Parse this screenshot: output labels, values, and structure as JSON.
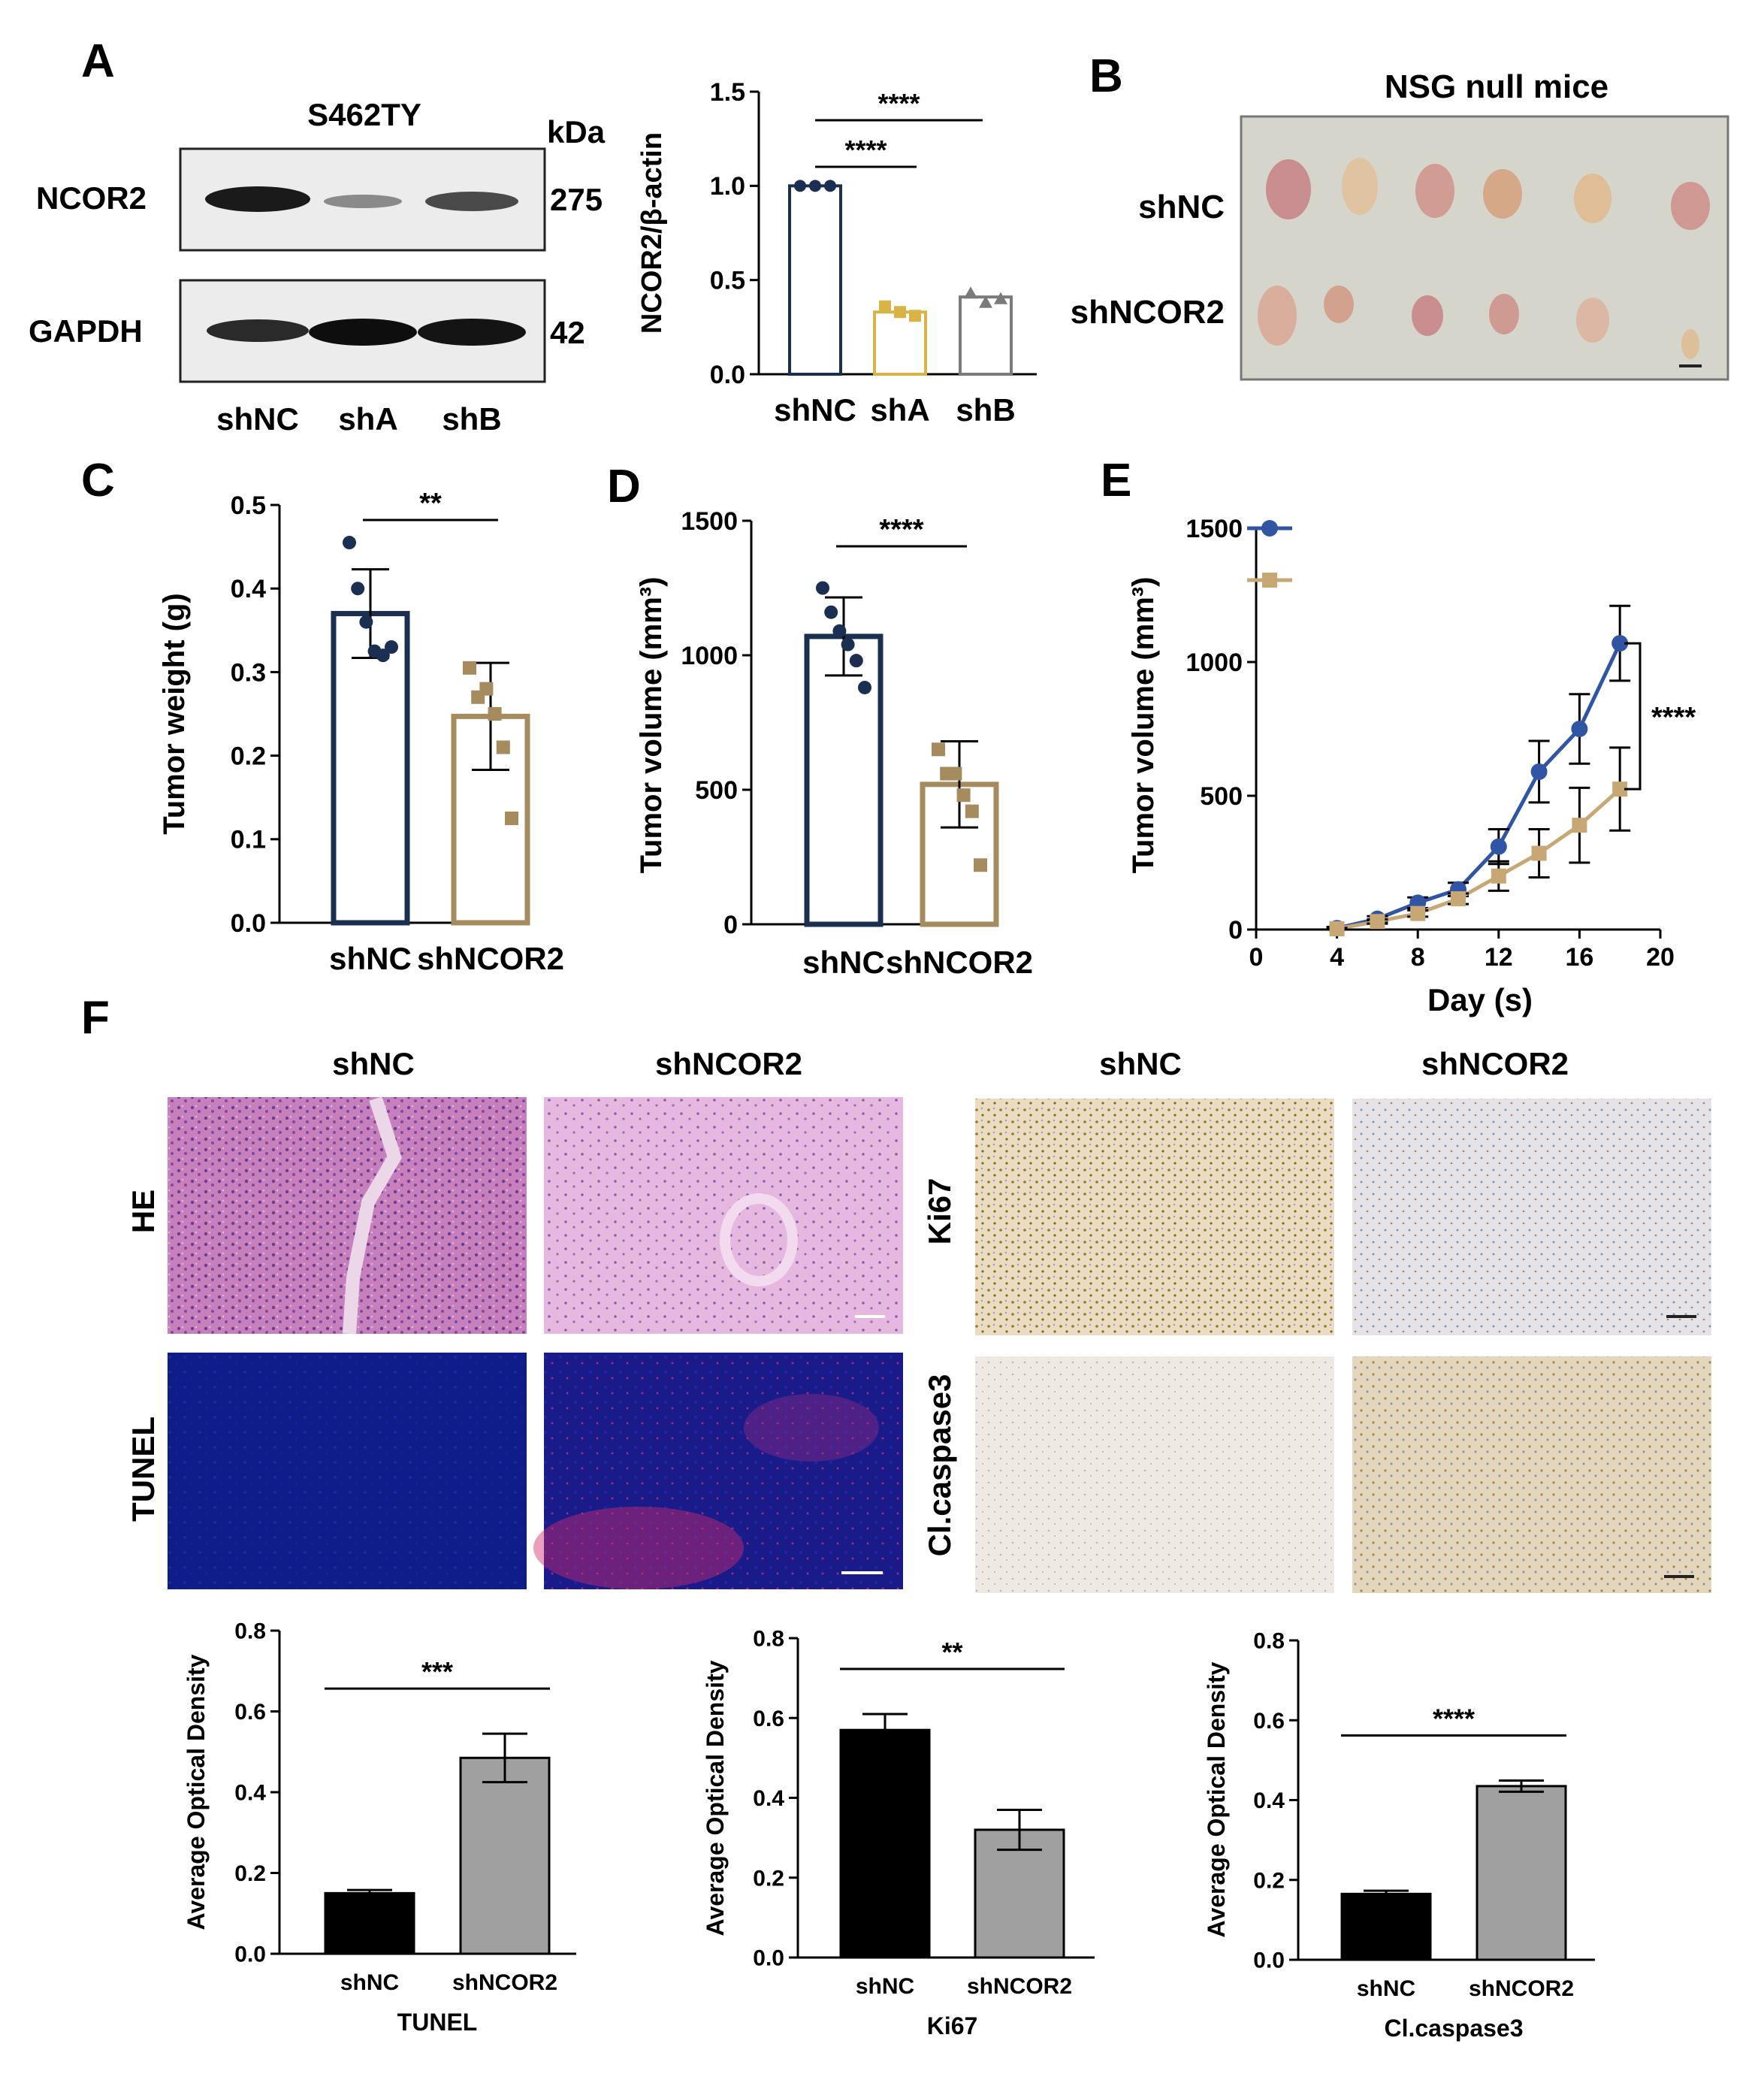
{
  "panels": {
    "a": "A",
    "b": "B",
    "c": "C",
    "d": "D",
    "e": "E",
    "f": "F"
  },
  "colors": {
    "navy": "#1b2f52",
    "tan": "#a58b5d",
    "gold": "#d8b447",
    "grey": "#7a7a7a",
    "blue_line": "#2f55a4",
    "tan_line": "#c7a874",
    "black_bar": "#000000",
    "grey_bar": "#a0a0a0"
  },
  "blot": {
    "cell_line": "S462TY",
    "kda": "kDa",
    "rows": [
      {
        "name": "NCOR2",
        "kda": "275"
      },
      {
        "name": "GAPDH",
        "kda": "42"
      }
    ],
    "lanes": [
      "shNC",
      "shA",
      "shB"
    ]
  },
  "mice": {
    "title": "NSG null mice",
    "rows": [
      "shNC",
      "shNCOR2"
    ]
  },
  "histology": {
    "left_cols": [
      "shNC",
      "shNCOR2"
    ],
    "right_cols": [
      "shNC",
      "shNCOR2"
    ],
    "left_rows": [
      "HE",
      "TUNEL"
    ],
    "right_rows": [
      "Ki67",
      "Cl.caspase3"
    ]
  },
  "chart_data": [
    {
      "id": "a2",
      "type": "bar",
      "categories": [
        "shNC",
        "shA",
        "shB"
      ],
      "values": [
        1.0,
        0.33,
        0.41
      ],
      "points": [
        [
          1.0,
          1.0,
          1.0
        ],
        [
          0.36,
          0.33,
          0.31
        ],
        [
          0.43,
          0.38,
          0.4
        ]
      ],
      "ylabel": "NCOR2/β-actin",
      "ylim": [
        0,
        1.5
      ],
      "yticks": [
        "0.0",
        "0.5",
        "1.0",
        "1.5"
      ],
      "sig": [
        {
          "from": 0,
          "to": 1,
          "label": "****"
        },
        {
          "from": 0,
          "to": 2,
          "label": "****"
        }
      ]
    },
    {
      "id": "c",
      "type": "bar",
      "categories": [
        "shNC",
        "shNCOR2"
      ],
      "values": [
        0.37,
        0.247
      ],
      "errors": [
        0.053,
        0.064
      ],
      "points": [
        [
          0.455,
          0.4,
          0.36,
          0.325,
          0.32,
          0.33
        ],
        [
          0.305,
          0.27,
          0.28,
          0.25,
          0.21,
          0.125
        ]
      ],
      "ylabel": "Tumor weight (g)",
      "ylim": [
        0,
        0.5
      ],
      "yticks": [
        "0.0",
        "0.1",
        "0.2",
        "0.3",
        "0.4",
        "0.5"
      ],
      "sig": [
        {
          "from": 0,
          "to": 1,
          "label": "**"
        }
      ]
    },
    {
      "id": "d",
      "type": "bar",
      "categories": [
        "shNC",
        "shNCOR2"
      ],
      "values": [
        1070,
        520
      ],
      "errors": [
        145,
        160
      ],
      "points": [
        [
          1250,
          1160,
          1090,
          1040,
          980,
          880
        ],
        [
          650,
          560,
          560,
          480,
          420,
          220
        ]
      ],
      "ylabel": "Tumor volume (mm³)",
      "ylim": [
        0,
        1500
      ],
      "yticks": [
        "0",
        "500",
        "1000",
        "1500"
      ],
      "sig": [
        {
          "from": 0,
          "to": 1,
          "label": "****"
        }
      ]
    },
    {
      "id": "e",
      "type": "line",
      "x": [
        4,
        6,
        8,
        10,
        12,
        14,
        16,
        18
      ],
      "series": [
        {
          "marker": "circle",
          "values": [
            5,
            40,
            100,
            150,
            310,
            590,
            750,
            1070
          ],
          "errors": [
            5,
            10,
            20,
            25,
            65,
            115,
            130,
            140
          ]
        },
        {
          "marker": "square",
          "values": [
            3,
            30,
            60,
            115,
            200,
            285,
            390,
            525
          ],
          "errors": [
            3,
            8,
            12,
            20,
            55,
            90,
            140,
            155
          ]
        }
      ],
      "xlabel": "Day (s)",
      "ylabel": "Tumor volume (mm³)",
      "xlim": [
        0,
        20
      ],
      "ylim": [
        0,
        1500
      ],
      "xticks": [
        "0",
        "4",
        "8",
        "12",
        "16",
        "20"
      ],
      "yticks": [
        "0",
        "500",
        "1000",
        "1500"
      ],
      "sig": "****"
    },
    {
      "id": "f1",
      "type": "bar",
      "categories": [
        "shNC",
        "shNCOR2"
      ],
      "values": [
        0.15,
        0.485
      ],
      "errors": [
        0.008,
        0.06
      ],
      "ylabel": "Average Optical Density",
      "xlabel": "TUNEL",
      "ylim": [
        0,
        0.8
      ],
      "yticks": [
        "0.0",
        "0.2",
        "0.4",
        "0.6",
        "0.8"
      ],
      "sig": [
        {
          "from": 0,
          "to": 1,
          "label": "***"
        }
      ]
    },
    {
      "id": "f2",
      "type": "bar",
      "categories": [
        "shNC",
        "shNCOR2"
      ],
      "values": [
        0.57,
        0.32
      ],
      "errors": [
        0.04,
        0.05
      ],
      "ylabel": "Average Optical Density",
      "xlabel": "Ki67",
      "ylim": [
        0,
        0.8
      ],
      "yticks": [
        "0.0",
        "0.2",
        "0.4",
        "0.6",
        "0.8"
      ],
      "sig": [
        {
          "from": 0,
          "to": 1,
          "label": "**"
        }
      ]
    },
    {
      "id": "f3",
      "type": "bar",
      "categories": [
        "shNC",
        "shNCOR2"
      ],
      "values": [
        0.165,
        0.435
      ],
      "errors": [
        0.008,
        0.014
      ],
      "ylabel": "Average Optical Density",
      "xlabel": "Cl.caspase3",
      "ylim": [
        0,
        0.8
      ],
      "yticks": [
        "0.0",
        "0.2",
        "0.4",
        "0.6",
        "0.8"
      ],
      "sig": [
        {
          "from": 0,
          "to": 1,
          "label": "****"
        }
      ]
    }
  ]
}
